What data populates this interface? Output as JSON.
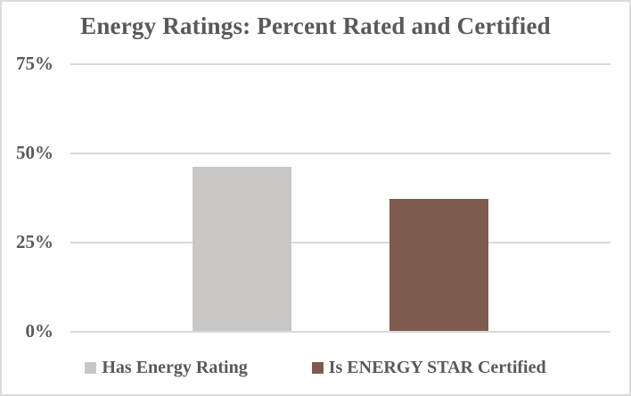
{
  "chart_data": {
    "type": "bar",
    "title": "Energy Ratings: Percent Rated and Certified",
    "series": [
      {
        "name": "Has Energy Rating",
        "value": 46,
        "color": "#C9C7C5"
      },
      {
        "name": "Is ENERGY STAR Certified",
        "value": 37,
        "color": "#7E5C4E"
      }
    ],
    "yticks": [
      "75%",
      "50%",
      "25%",
      "0%"
    ],
    "ylim": [
      0,
      75
    ],
    "xlabel": "",
    "ylabel": "",
    "grid": true,
    "legend_position": "bottom",
    "text_color": "#595959",
    "gridline_color": "#D9D9D9"
  }
}
